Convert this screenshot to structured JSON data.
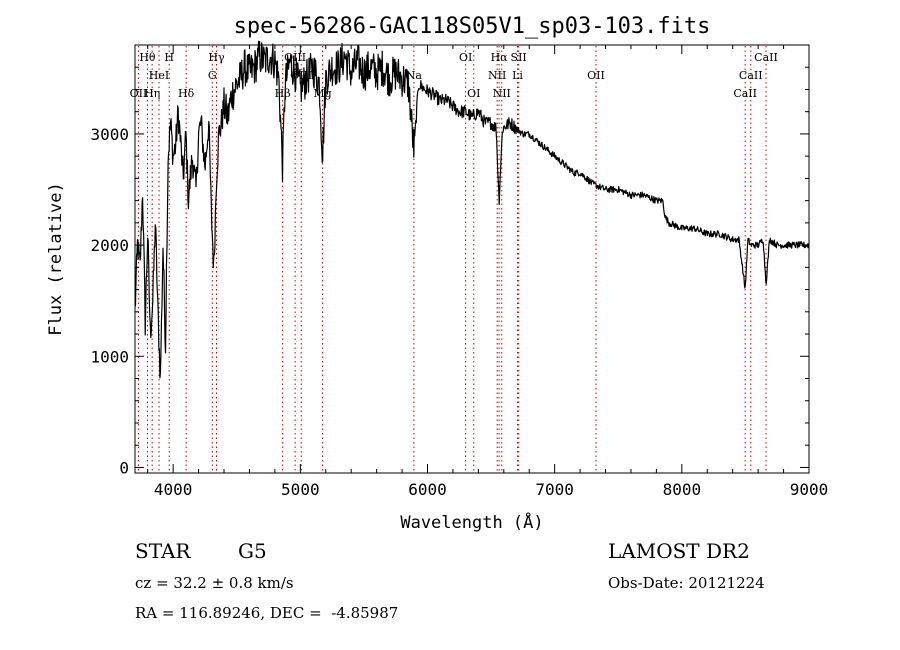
{
  "info": {
    "object_class": "STAR",
    "subclass": "G5",
    "survey": "LAMOST DR2",
    "cz": "cz = 32.2 ± 0.8 km/s",
    "obs_date": "Obs-Date: 20121224",
    "radec": "RA = 116.89246, DEC =  -4.85987"
  },
  "chart_data": {
    "type": "line",
    "title": "spec-56286-GAC118S05V1_sp03-103.fits",
    "xlabel": "Wavelength (Å)",
    "ylabel": "Flux (relative)",
    "xlim": [
      3700,
      9000
    ],
    "ylim": [
      -50,
      3800
    ],
    "grid": false,
    "x_ticks": [
      4000,
      5000,
      6000,
      7000,
      8000,
      9000
    ],
    "y_ticks": [
      0,
      1000,
      2000,
      3000
    ],
    "line_color": "#000000",
    "marker_color": "#cc0000",
    "series": [
      {
        "x": [
          3700,
          3720,
          3740,
          3760,
          3780,
          3800,
          3820,
          3840,
          3860,
          3880,
          3900,
          3920,
          3940,
          3960,
          3980,
          4000,
          4020,
          4040,
          4060,
          4080,
          4100,
          4120,
          4150,
          4180,
          4200,
          4220,
          4250,
          4280,
          4300,
          4320,
          4340,
          4360,
          4380,
          4400,
          4430,
          4460,
          4500,
          4530,
          4560,
          4600,
          4640,
          4680,
          4720,
          4760,
          4800,
          4830,
          4861,
          4880,
          4920,
          4960,
          5000,
          5050,
          5100,
          5150,
          5175,
          5200,
          5250,
          5300,
          5350,
          5400,
          5450,
          5500,
          5550,
          5600,
          5650,
          5700,
          5750,
          5800,
          5850,
          5893,
          5930,
          5980,
          6050,
          6100,
          6150,
          6200,
          6250,
          6300,
          6350,
          6400,
          6450,
          6500,
          6540,
          6563,
          6590,
          6650,
          6700,
          6750,
          6800,
          6850,
          6900,
          6950,
          7000,
          7050,
          7100,
          7150,
          7200,
          7250,
          7300,
          7400,
          7500,
          7600,
          7700,
          7800,
          7850,
          7870,
          7900,
          8000,
          8100,
          8200,
          8300,
          8400,
          8450,
          8498,
          8520,
          8542,
          8570,
          8600,
          8640,
          8662,
          8690,
          8750,
          8800,
          8850,
          8900,
          8950,
          9000
        ],
        "y": [
          1400,
          2000,
          1800,
          2500,
          1300,
          2100,
          1200,
          1500,
          2200,
          1400,
          800,
          2000,
          1100,
          2800,
          3100,
          2800,
          2900,
          3200,
          2900,
          2600,
          3000,
          2400,
          2800,
          2500,
          3000,
          3100,
          2700,
          3100,
          2300,
          1800,
          2600,
          3000,
          3100,
          3250,
          3150,
          3350,
          3450,
          3500,
          3600,
          3550,
          3600,
          3700,
          3650,
          3700,
          3650,
          3500,
          2700,
          3450,
          3650,
          3550,
          3400,
          3500,
          3600,
          3450,
          2800,
          3500,
          3600,
          3600,
          3700,
          3550,
          3650,
          3550,
          3600,
          3550,
          3600,
          3500,
          3550,
          3500,
          3450,
          2850,
          3450,
          3400,
          3350,
          3300,
          3300,
          3250,
          3200,
          3200,
          3150,
          3200,
          3100,
          3100,
          3050,
          2400,
          3050,
          3100,
          3050,
          3000,
          3000,
          2950,
          2900,
          2850,
          2800,
          2750,
          2700,
          2650,
          2650,
          2600,
          2550,
          2500,
          2500,
          2450,
          2450,
          2400,
          2400,
          2250,
          2200,
          2150,
          2150,
          2100,
          2100,
          2050,
          2050,
          1600,
          2050,
          2000,
          2000,
          2000,
          2050,
          1650,
          2050,
          2000,
          2000,
          2000,
          2000,
          2000,
          2000
        ]
      }
    ],
    "lines": [
      {
        "name": "Hθ",
        "wave": 3798,
        "row": 0
      },
      {
        "name": "OII",
        "wave": 3727,
        "row": 2
      },
      {
        "name": "Hη",
        "wave": 3835,
        "row": 2
      },
      {
        "name": "HeI",
        "wave": 3889,
        "row": 1
      },
      {
        "name": "H",
        "wave": 3969,
        "row": 0
      },
      {
        "name": "Hδ",
        "wave": 4102,
        "row": 2
      },
      {
        "name": "Hγ",
        "wave": 4341,
        "row": 0
      },
      {
        "name": "G",
        "wave": 4308,
        "row": 1
      },
      {
        "name": "Hβ",
        "wave": 4861,
        "row": 2
      },
      {
        "name": "OIII",
        "wave": 4959,
        "row": 0
      },
      {
        "name": "OIII",
        "wave": 5007,
        "row": 1
      },
      {
        "name": "Mg",
        "wave": 5175,
        "row": 2
      },
      {
        "name": "Na",
        "wave": 5893,
        "row": 1
      },
      {
        "name": "OI",
        "wave": 6300,
        "row": 0
      },
      {
        "name": "OI",
        "wave": 6364,
        "row": 2
      },
      {
        "name": "Hα",
        "wave": 6563,
        "row": 0
      },
      {
        "name": "NII",
        "wave": 6548,
        "row": 1
      },
      {
        "name": "NII",
        "wave": 6584,
        "row": 2
      },
      {
        "name": "SII",
        "wave": 6717,
        "row": 0
      },
      {
        "name": "Li",
        "wave": 6708,
        "row": 1
      },
      {
        "name": "OII",
        "wave": 7325,
        "row": 1
      },
      {
        "name": "CaII",
        "wave": 8498,
        "row": 2
      },
      {
        "name": "CaII",
        "wave": 8542,
        "row": 1
      },
      {
        "name": "CaII",
        "wave": 8662,
        "row": 0
      }
    ]
  }
}
